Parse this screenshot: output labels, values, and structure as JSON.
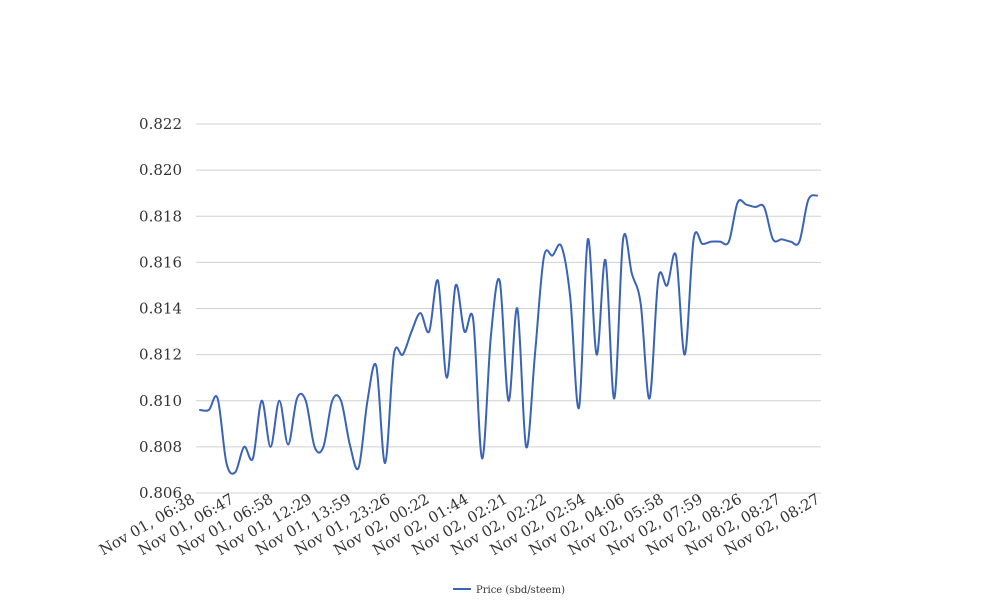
{
  "chart_data": {
    "type": "line",
    "title": "",
    "xlabel": "",
    "ylabel": "",
    "ylim": [
      0.806,
      0.822
    ],
    "y_ticks": [
      "0.806",
      "0.808",
      "0.810",
      "0.812",
      "0.814",
      "0.816",
      "0.818",
      "0.820",
      "0.822"
    ],
    "x_tick_labels": [
      "Nov 01, 06:38",
      "Nov 01, 06:47",
      "Nov 01, 06:58",
      "Nov 01, 12:29",
      "Nov 01, 13:59",
      "Nov 01, 23:26",
      "Nov 02, 00:22",
      "Nov 02, 01:44",
      "Nov 02, 02:21",
      "Nov 02, 02:22",
      "Nov 02, 02:54",
      "Nov 02, 04:06",
      "Nov 02, 05:58",
      "Nov 02, 07:59",
      "Nov 02, 08:26",
      "Nov 02, 08:27",
      "Nov 02, 08:27"
    ],
    "grid": true,
    "legend_position": "bottom-center",
    "series": [
      {
        "name": "Price (sbd/steem)",
        "color": "#3A63B8",
        "values": [
          0.8096,
          0.8096,
          0.8101,
          0.8073,
          0.8069,
          0.808,
          0.8075,
          0.81,
          0.808,
          0.81,
          0.8081,
          0.8101,
          0.81,
          0.808,
          0.808,
          0.81,
          0.81,
          0.8081,
          0.8071,
          0.81,
          0.8115,
          0.8073,
          0.812,
          0.812,
          0.813,
          0.8138,
          0.813,
          0.8152,
          0.811,
          0.815,
          0.813,
          0.8135,
          0.8075,
          0.8128,
          0.8152,
          0.81,
          0.814,
          0.808,
          0.812,
          0.8162,
          0.8163,
          0.8167,
          0.8145,
          0.8097,
          0.817,
          0.812,
          0.8161,
          0.8101,
          0.817,
          0.8155,
          0.8142,
          0.8101,
          0.8153,
          0.815,
          0.8163,
          0.812,
          0.817,
          0.8168,
          0.8169,
          0.8169,
          0.8169,
          0.8186,
          0.8185,
          0.8184,
          0.8184,
          0.817,
          0.817,
          0.8169,
          0.8169,
          0.8187,
          0.8189
        ]
      }
    ]
  }
}
